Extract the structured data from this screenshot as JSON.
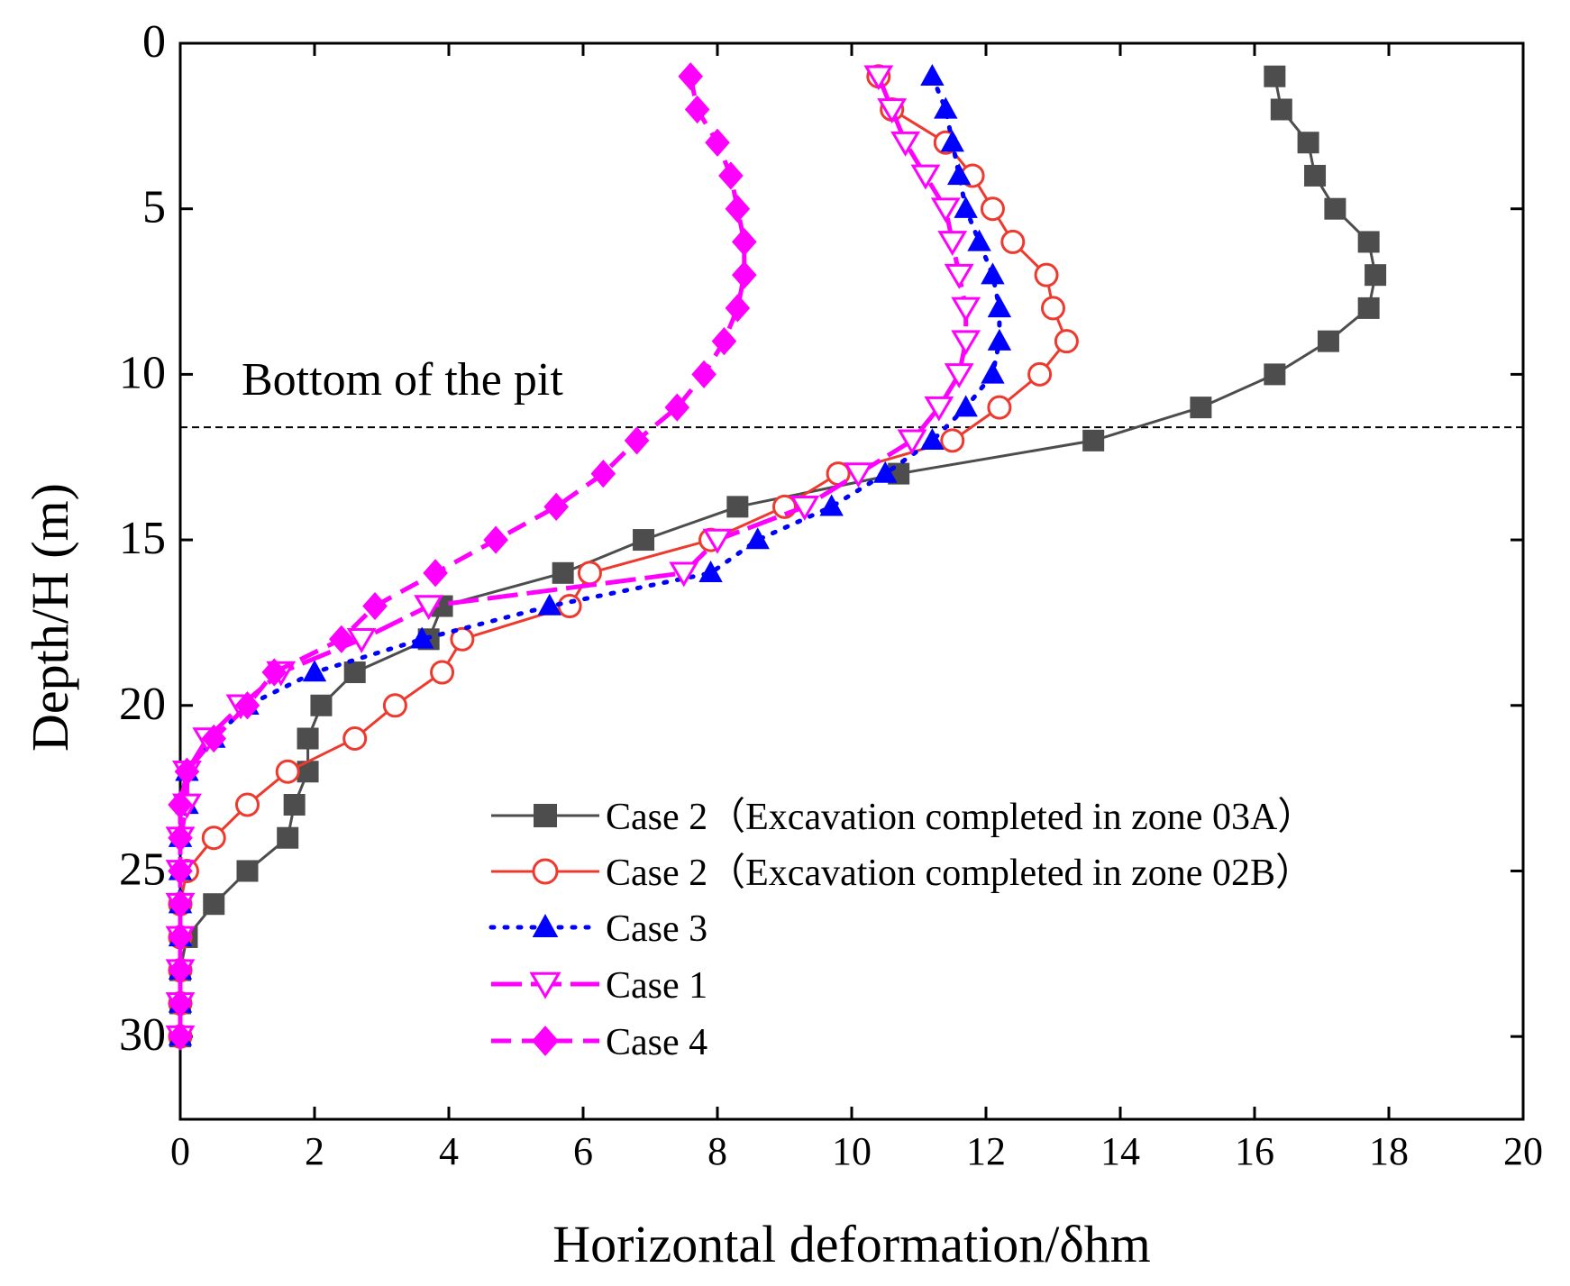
{
  "chart_data": {
    "type": "line",
    "xlabel": "Horizontal deformation/δhm",
    "ylabel": "Depth/H (m)",
    "xlim": [
      0,
      20
    ],
    "ylim": [
      0,
      32.5
    ],
    "y_inverted": true,
    "xticks": [
      0,
      2,
      4,
      6,
      8,
      10,
      12,
      14,
      16,
      18,
      20
    ],
    "yticks": [
      0,
      5,
      10,
      15,
      20,
      25,
      30
    ],
    "annotation": {
      "text": "Bottom of the pit",
      "depth": 11.6
    },
    "legend_position": "bottom-right",
    "series": [
      {
        "name": "Case 2（Excavation completed in zone 03A）",
        "color": "#4d4d4d",
        "line": "solid",
        "marker": "filled-square",
        "x": [
          16.3,
          16.4,
          16.8,
          16.9,
          17.2,
          17.7,
          17.8,
          17.7,
          17.1,
          16.3,
          15.2,
          13.6,
          10.7,
          8.3,
          6.9,
          5.7,
          3.9,
          3.7,
          2.6,
          2.1,
          1.9,
          1.9,
          1.7,
          1.6,
          1.0,
          0.5,
          0.1,
          0.0,
          0.0,
          0.0
        ],
        "y": [
          1,
          2,
          3,
          4,
          5,
          6,
          7,
          8,
          9,
          10,
          11,
          12,
          13,
          14,
          15,
          16,
          17,
          18,
          19,
          20,
          21,
          22,
          23,
          24,
          25,
          26,
          27,
          28,
          29,
          30
        ]
      },
      {
        "name": "Case 2（Excavation completed in zone 02B）",
        "color": "#ee3a2e",
        "line": "solid",
        "marker": "open-circle",
        "x": [
          10.4,
          10.6,
          11.4,
          11.8,
          12.1,
          12.4,
          12.9,
          13.0,
          13.2,
          12.8,
          12.2,
          11.5,
          9.8,
          9.0,
          7.9,
          6.1,
          5.8,
          4.2,
          3.9,
          3.2,
          2.6,
          1.6,
          1.0,
          0.5,
          0.1,
          0.0,
          0.0,
          0.0,
          0.0,
          0.0
        ],
        "y": [
          1,
          2,
          3,
          4,
          5,
          6,
          7,
          8,
          9,
          10,
          11,
          12,
          13,
          14,
          15,
          16,
          17,
          18,
          19,
          20,
          21,
          22,
          23,
          24,
          25,
          26,
          27,
          28,
          29,
          30
        ]
      },
      {
        "name": "Case 3",
        "color": "#0000ff",
        "line": "dotted",
        "marker": "filled-triangle-up",
        "x": [
          11.2,
          11.4,
          11.5,
          11.6,
          11.7,
          11.9,
          12.1,
          12.2,
          12.2,
          12.1,
          11.7,
          11.2,
          10.5,
          9.7,
          8.6,
          7.9,
          5.5,
          3.6,
          2.0,
          1.0,
          0.5,
          0.1,
          0.1,
          0.0,
          0.0,
          0.0,
          0.0,
          0.0,
          0.0,
          0.0
        ],
        "y": [
          1,
          2,
          3,
          4,
          5,
          6,
          7,
          8,
          9,
          10,
          11,
          12,
          13,
          14,
          15,
          16,
          17,
          18,
          19,
          20,
          21,
          22,
          23,
          24,
          25,
          26,
          27,
          28,
          29,
          30
        ]
      },
      {
        "name": "Case 1",
        "color": "#ff00ff",
        "line": "long-dash",
        "marker": "open-triangle-down",
        "x": [
          10.4,
          10.6,
          10.8,
          11.1,
          11.4,
          11.5,
          11.6,
          11.7,
          11.7,
          11.6,
          11.3,
          10.9,
          10.1,
          9.3,
          8.0,
          7.5,
          3.7,
          2.7,
          1.5,
          0.9,
          0.4,
          0.1,
          0.1,
          0.0,
          0.0,
          0.0,
          0.0,
          0.0,
          0.0,
          0.0
        ],
        "y": [
          1,
          2,
          3,
          4,
          5,
          6,
          7,
          8,
          9,
          10,
          11,
          12,
          13,
          14,
          15,
          16,
          17,
          18,
          19,
          20,
          21,
          22,
          23,
          24,
          25,
          26,
          27,
          28,
          29,
          30
        ]
      },
      {
        "name": "Case 4",
        "color": "#ff00ff",
        "line": "dash",
        "marker": "filled-diamond",
        "x": [
          7.6,
          7.7,
          8.0,
          8.2,
          8.3,
          8.4,
          8.4,
          8.3,
          8.1,
          7.8,
          7.4,
          6.8,
          6.3,
          5.6,
          4.7,
          3.8,
          2.9,
          2.4,
          1.4,
          1.0,
          0.5,
          0.1,
          0.0,
          0.0,
          0.0,
          0.0,
          0.0,
          0.0,
          0.0,
          0.0
        ],
        "y": [
          1,
          2,
          3,
          4,
          5,
          6,
          7,
          8,
          9,
          10,
          11,
          12,
          13,
          14,
          15,
          16,
          17,
          18,
          19,
          20,
          21,
          22,
          23,
          24,
          25,
          26,
          27,
          28,
          29,
          30
        ]
      }
    ]
  }
}
